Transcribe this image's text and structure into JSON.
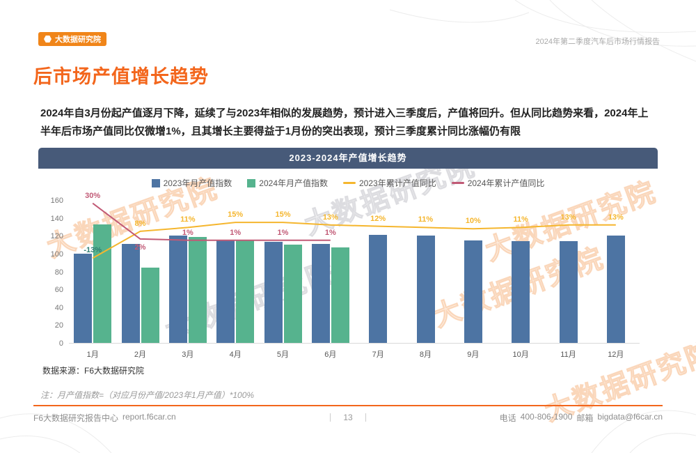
{
  "page": {
    "logo_text": "大数据研究院",
    "report_label": "2024年第二季度汽车后市场行情报告",
    "title": "后市场产值增长趋势",
    "summary": "2024年自3月份起产值逐月下降，延续了与2023年相似的发展趋势，预计进入三季度后，产值将回升。但从同比趋势来看，2024年上半年后市场产值同比仅微增1%，且其增长主要得益于1月份的突出表现，预计三季度累计同比涨幅仍有限",
    "watermark": "大数据研究院"
  },
  "chart": {
    "header": "2023-2024年产值增长趋势",
    "source": "数据来源：F6大数据研究院",
    "note": "注：月产值指数=（对应月份产值/2023年1月产值）*100%"
  },
  "chart_data": {
    "type": "bar+line",
    "title": "2023-2024年产值增长趋势",
    "categories": [
      "1月",
      "2月",
      "3月",
      "4月",
      "5月",
      "6月",
      "7月",
      "8月",
      "9月",
      "10月",
      "11月",
      "12月"
    ],
    "bar_series": [
      {
        "name": "2023年月产值指数",
        "color": "#4d74a3",
        "values": [
          100,
          111,
          120,
          115,
          113,
          111,
          121,
          120,
          115,
          114,
          114,
          120
        ]
      },
      {
        "name": "2024年月产值指数",
        "color": "#56b38e",
        "values": [
          133,
          84,
          119,
          115,
          110,
          107,
          null,
          null,
          null,
          null,
          null,
          null
        ]
      }
    ],
    "line_series": [
      {
        "name": "2023年累计产值同比",
        "color": "#f5b62e",
        "values_pct": [
          -13,
          8,
          11,
          15,
          15,
          13,
          12,
          11,
          10,
          11,
          13,
          13
        ],
        "labels": [
          "-13%",
          "8%",
          "11%",
          "15%",
          "15%",
          "13%",
          "12%",
          "11%",
          "10%",
          "11%",
          "13%",
          "13%"
        ],
        "label_color_overrides": {
          "0": "#2e7d71"
        }
      },
      {
        "name": "2024年累计产值同比",
        "color": "#c15a76",
        "values_pct": [
          30,
          2,
          1,
          1,
          1,
          1,
          null,
          null,
          null,
          null,
          null,
          null
        ],
        "labels": [
          "30%",
          "2%",
          "1%",
          "1%",
          "1%",
          "1%",
          null,
          null,
          null,
          null,
          null,
          null
        ]
      }
    ],
    "ylim": [
      0,
      160
    ],
    "yticks": [
      0,
      20,
      40,
      60,
      80,
      100,
      120,
      140,
      160
    ],
    "pct_axis_range": [
      -80,
      32
    ],
    "legend_position": "top-center",
    "grid": false
  },
  "footer": {
    "dept": "F6大数据研究报告中心",
    "site": "report.f6car.cn",
    "page_number": "13",
    "phone_label": "电话",
    "phone": "400-806-1900",
    "email_label": "邮箱",
    "email": "bigdata@f6car.cn"
  }
}
